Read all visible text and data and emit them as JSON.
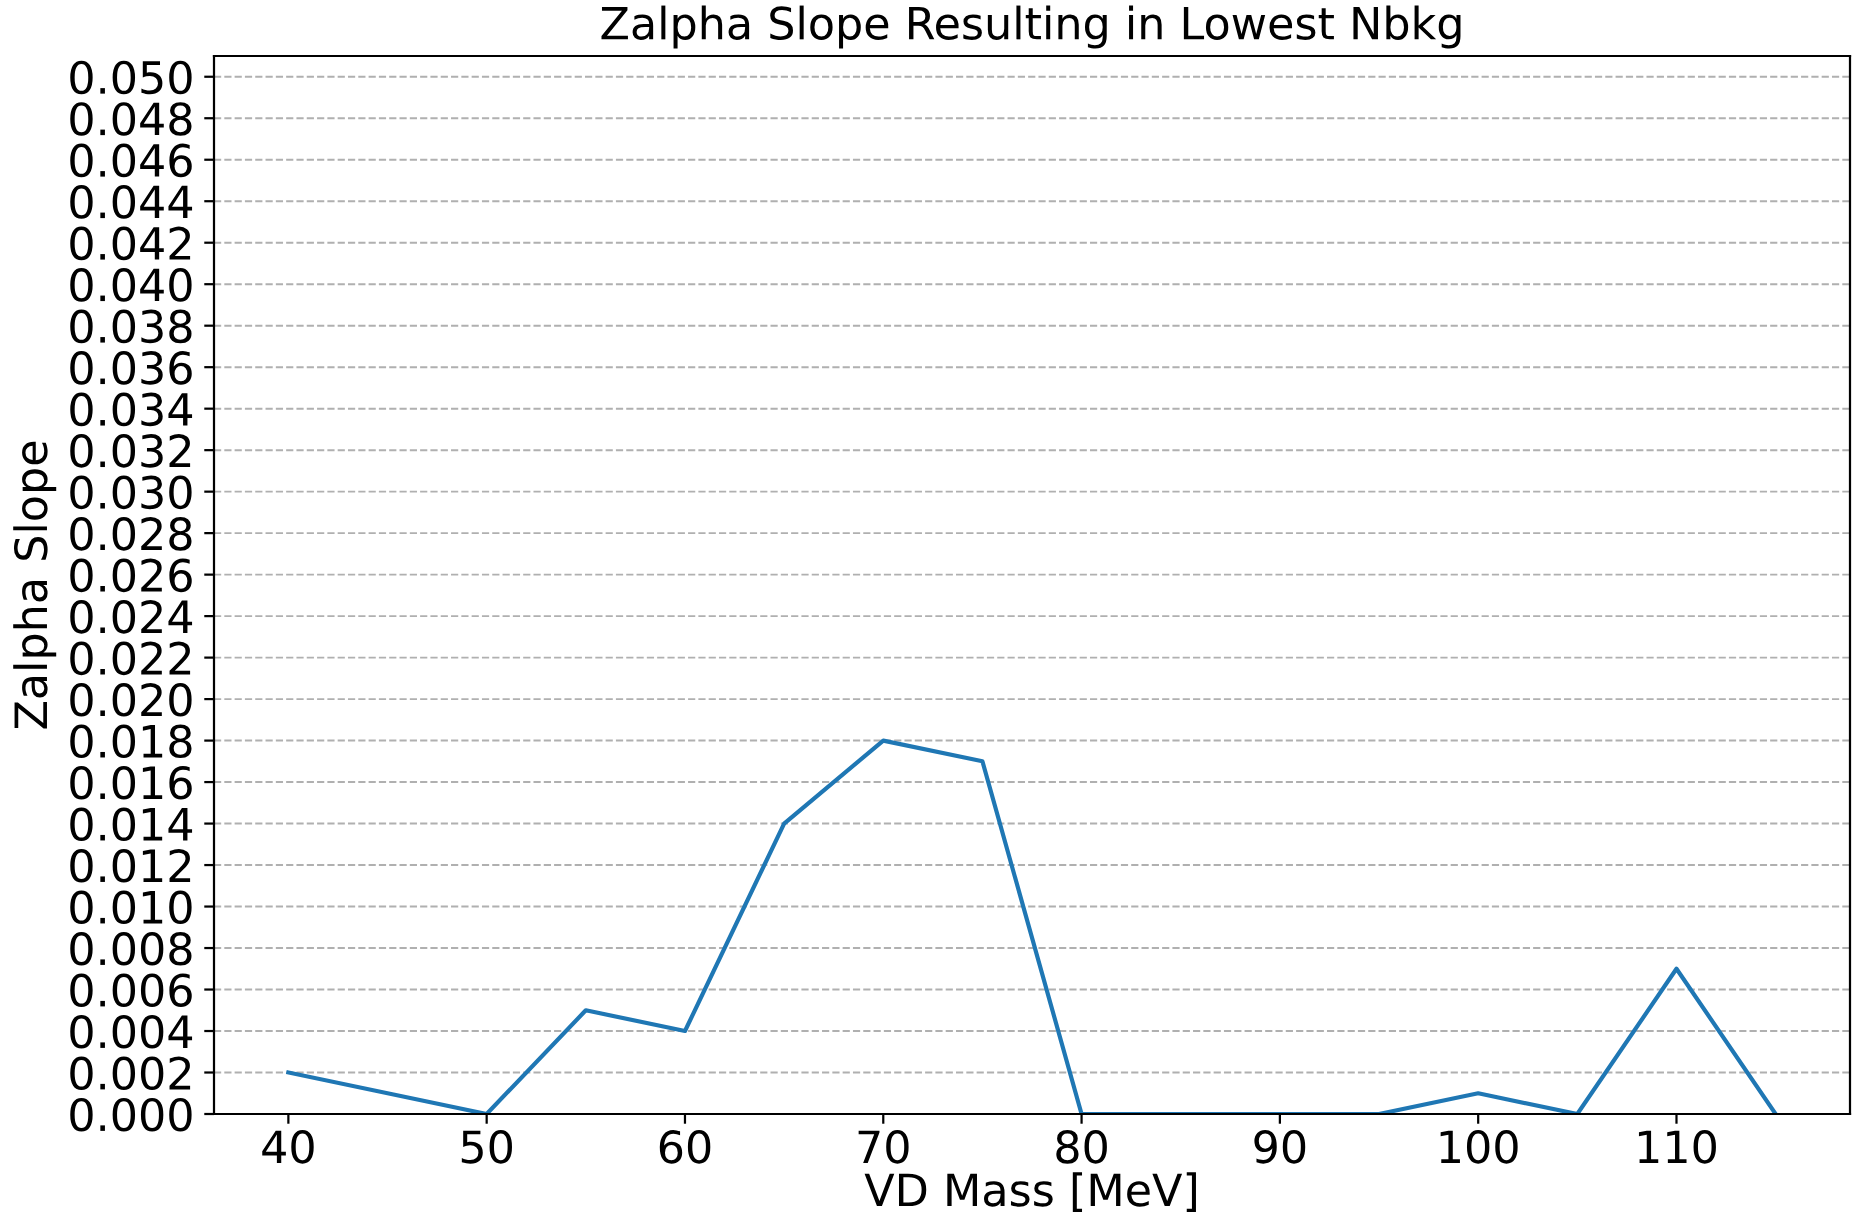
{
  "chart_data": {
    "type": "line",
    "title": "Zalpha Slope Resulting in Lowest Nbkg",
    "xlabel": "VD Mass [MeV]",
    "ylabel": "Zalpha Slope",
    "x": [
      40,
      50,
      55,
      60,
      65,
      70,
      75,
      80,
      95,
      100,
      105,
      110,
      115
    ],
    "series": [
      {
        "color": "#1f77b4",
        "values": [
          0.002,
          0.0,
          0.005,
          0.004,
          0.014,
          0.018,
          0.017,
          0.0,
          0.0,
          0.001,
          0.0,
          0.007,
          0.0
        ]
      }
    ],
    "xlim": [
      36.25,
      118.75
    ],
    "xticks": [
      40,
      50,
      60,
      70,
      80,
      90,
      100,
      110
    ],
    "ylim": [
      0,
      0.051
    ],
    "yticks": [
      {
        "value": 0,
        "label": "0.000"
      },
      {
        "value": 0.002,
        "label": "0.002"
      },
      {
        "value": 0.004,
        "label": "0.004"
      },
      {
        "value": 0.006,
        "label": "0.006"
      },
      {
        "value": 0.008,
        "label": "0.008"
      },
      {
        "value": 0.01,
        "label": "0.010"
      },
      {
        "value": 0.012,
        "label": "0.012"
      },
      {
        "value": 0.014,
        "label": "0.014"
      },
      {
        "value": 0.016,
        "label": "0.016"
      },
      {
        "value": 0.018,
        "label": "0.018"
      },
      {
        "value": 0.02,
        "label": "0.020"
      },
      {
        "value": 0.022,
        "label": "0.022"
      },
      {
        "value": 0.024,
        "label": "0.024"
      },
      {
        "value": 0.026,
        "label": "0.026"
      },
      {
        "value": 0.028,
        "label": "0.028"
      },
      {
        "value": 0.03,
        "label": "0.030"
      },
      {
        "value": 0.032,
        "label": "0.032"
      },
      {
        "value": 0.034,
        "label": "0.034"
      },
      {
        "value": 0.036,
        "label": "0.036"
      },
      {
        "value": 0.038,
        "label": "0.038"
      },
      {
        "value": 0.04,
        "label": "0.040"
      },
      {
        "value": 0.042,
        "label": "0.042"
      },
      {
        "value": 0.044,
        "label": "0.044"
      },
      {
        "value": 0.046,
        "label": "0.046"
      },
      {
        "value": 0.048,
        "label": "0.048"
      },
      {
        "value": 0.05,
        "label": "0.050"
      }
    ],
    "grid": "y",
    "line_style": "solid"
  }
}
